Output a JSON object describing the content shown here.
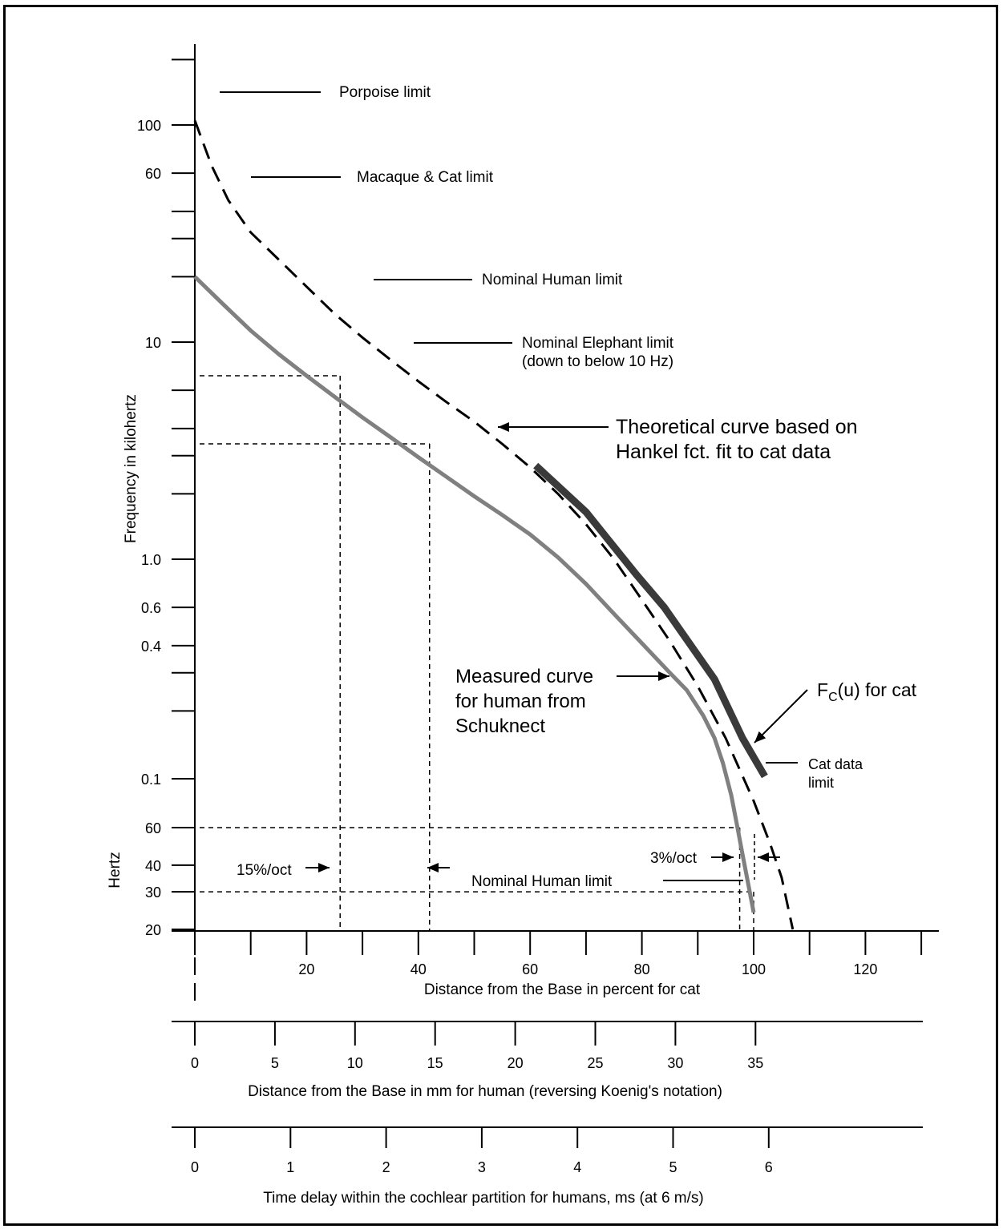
{
  "chart_data": {
    "type": "line",
    "y_axis": {
      "scale": "log",
      "unit_blocks": [
        {
          "label": "Frequency in kilohertz",
          "range_hz": [
            100,
            200000
          ]
        },
        {
          "label": "Hertz",
          "range_hz": [
            20,
            100
          ]
        }
      ],
      "ticks": [
        {
          "hz": 200000,
          "label": ""
        },
        {
          "hz": 100000,
          "label": "100"
        },
        {
          "hz": 60000,
          "label": "60"
        },
        {
          "hz": 40000,
          "label": ""
        },
        {
          "hz": 30000,
          "label": ""
        },
        {
          "hz": 20000,
          "label": ""
        },
        {
          "hz": 10000,
          "label": "10"
        },
        {
          "hz": 6000,
          "label": ""
        },
        {
          "hz": 4000,
          "label": ""
        },
        {
          "hz": 3000,
          "label": ""
        },
        {
          "hz": 2000,
          "label": ""
        },
        {
          "hz": 1000,
          "label": "1.0"
        },
        {
          "hz": 600,
          "label": "0.6"
        },
        {
          "hz": 400,
          "label": "0.4"
        },
        {
          "hz": 300,
          "label": ""
        },
        {
          "hz": 200,
          "label": ""
        },
        {
          "hz": 100,
          "label": "0.1"
        },
        {
          "hz": 60,
          "label": "60"
        },
        {
          "hz": 40,
          "label": "40"
        },
        {
          "hz": 30,
          "label": "30"
        },
        {
          "hz": 20,
          "label": "20"
        }
      ]
    },
    "x_axes": [
      {
        "label": "Distance from the Base in percent for cat",
        "range": [
          0,
          130
        ],
        "ticks": [
          0,
          10,
          20,
          30,
          40,
          50,
          60,
          70,
          80,
          90,
          100,
          110,
          120,
          130
        ],
        "tick_labels": [
          {
            "value": 20,
            "label": "20"
          },
          {
            "value": 40,
            "label": "40"
          },
          {
            "value": 60,
            "label": "60"
          },
          {
            "value": 80,
            "label": "80"
          },
          {
            "value": 100,
            "label": "100"
          },
          {
            "value": 120,
            "label": "120"
          }
        ]
      },
      {
        "label": "Distance from the Base in mm for human (reversing Koenig's notation)",
        "range": [
          0,
          35
        ],
        "ticks": [
          0,
          5,
          10,
          15,
          20,
          25,
          30,
          35
        ],
        "tick_labels": [
          "0",
          "5",
          "10",
          "15",
          "20",
          "25",
          "30",
          "35"
        ]
      },
      {
        "label": "Time delay within the cochlear partition for humans, ms (at 6 m/s)",
        "range": [
          0,
          6
        ],
        "ticks": [
          0,
          1,
          2,
          3,
          4,
          5,
          6
        ],
        "tick_labels": [
          "0",
          "1",
          "2",
          "3",
          "4",
          "5",
          "6"
        ]
      }
    ],
    "series": [
      {
        "name": "Theoretical curve based on Hankel fct. fit to cat data",
        "style": "dashed",
        "color": "#000000",
        "points": [
          [
            0,
            105000
          ],
          [
            3,
            65000
          ],
          [
            6,
            45000
          ],
          [
            10,
            32000
          ],
          [
            15,
            24000
          ],
          [
            20,
            18000
          ],
          [
            25,
            13500
          ],
          [
            30,
            10500
          ],
          [
            35,
            8300
          ],
          [
            40,
            6600
          ],
          [
            45,
            5300
          ],
          [
            50,
            4300
          ],
          [
            55,
            3400
          ],
          [
            60,
            2650
          ],
          [
            65,
            2000
          ],
          [
            70,
            1450
          ],
          [
            75,
            1000
          ],
          [
            80,
            650
          ],
          [
            85,
            420
          ],
          [
            90,
            260
          ],
          [
            95,
            150
          ],
          [
            100,
            80
          ],
          [
            103,
            50
          ],
          [
            105,
            35
          ],
          [
            107,
            20
          ]
        ]
      },
      {
        "name": "Measured curve for human from Schuknect",
        "style": "solid",
        "color": "#808080",
        "points": [
          [
            0,
            20000
          ],
          [
            5,
            15000
          ],
          [
            10,
            11300
          ],
          [
            15,
            8800
          ],
          [
            20,
            7000
          ],
          [
            25,
            5600
          ],
          [
            30,
            4500
          ],
          [
            35,
            3650
          ],
          [
            40,
            2950
          ],
          [
            45,
            2400
          ],
          [
            50,
            1950
          ],
          [
            55,
            1600
          ],
          [
            60,
            1300
          ],
          [
            65,
            1020
          ],
          [
            70,
            770
          ],
          [
            75,
            560
          ],
          [
            80,
            410
          ],
          [
            85,
            300
          ],
          [
            88,
            250
          ],
          [
            91,
            190
          ],
          [
            93,
            150
          ],
          [
            94.5,
            115
          ],
          [
            96,
            85
          ],
          [
            97,
            62
          ],
          [
            98,
            45
          ],
          [
            99,
            33
          ],
          [
            100,
            24
          ]
        ]
      },
      {
        "name": "Fᴄ(u) for cat",
        "style": "solid",
        "color": "#3a3a3a",
        "points": [
          [
            61,
            2700
          ],
          [
            70,
            1650
          ],
          [
            79,
            850
          ],
          [
            84,
            600
          ],
          [
            93,
            280
          ],
          [
            98,
            150
          ],
          [
            102,
            100
          ]
        ]
      }
    ],
    "reference_lines": [
      {
        "label": "Porpoise limit",
        "hz": 150000
      },
      {
        "label": "Macaque & Cat limit",
        "hz": 60000
      },
      {
        "label": "Nominal Human limit",
        "hz": 20000
      },
      {
        "label": "Nominal Elephant limit",
        "hz": 10000,
        "note": "(down to below 10 Hz)"
      },
      {
        "label": "Nominal Human limit",
        "hz": 20
      }
    ],
    "guides": [
      {
        "hz": 7000,
        "x_percent": 26
      },
      {
        "hz": 3400,
        "x_percent": 42
      },
      {
        "hz": 60,
        "x_percent": 97.5
      },
      {
        "hz": 30,
        "x_percent": 100
      }
    ],
    "annotations": {
      "hankel": [
        "Theoretical curve based on",
        "Hankel fct. fit to cat data"
      ],
      "measured": [
        "Measured curve",
        "for human from",
        "Schuknect"
      ],
      "fc_main": "F",
      "fc_sub": "C",
      "fc_rest": "(u) for cat",
      "cat_limit": [
        "Cat data",
        "limit"
      ],
      "left_pct": "15%/oct",
      "right_pct": "3%/oct"
    }
  }
}
